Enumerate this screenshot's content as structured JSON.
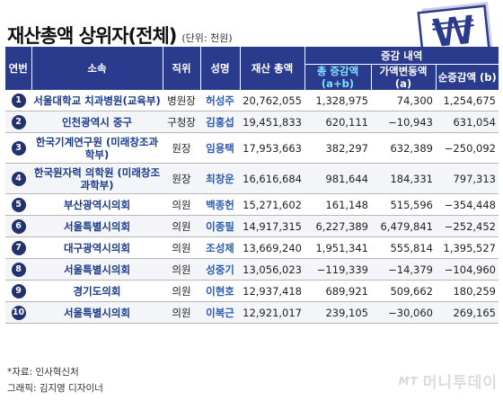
{
  "title": "재산총액 상위자(전체)",
  "unit": "(단위: 천원)",
  "logo_symbol": "₩",
  "colors": {
    "header_bg": "#2a3a8c",
    "org_text": "#1a3a8a",
    "name_text": "#2a5db0",
    "sub_header": "#7fe0ff"
  },
  "chart_data": {
    "type": "table",
    "header_group": "증감 내역",
    "columns": [
      "연번",
      "소속",
      "직위",
      "성명",
      "재산 총액",
      "총 증감액 (a+b)",
      "가액변동액 (a)",
      "순증감액 (b)"
    ],
    "rows": [
      [
        "1",
        "서울대학교 치과병원(교육부)",
        "병원장",
        "허성주",
        "20,762,055",
        "1,328,975",
        "74,300",
        "1,254,675"
      ],
      [
        "2",
        "인천광역시 중구",
        "구청장",
        "김홍섭",
        "19,451,833",
        "620,111",
        "−10,943",
        "631,054"
      ],
      [
        "3",
        "한국기계연구원 (미래창조과학부)",
        "원장",
        "임용택",
        "17,953,663",
        "382,297",
        "632,389",
        "−250,092"
      ],
      [
        "4",
        "한국원자력 의학원 (미래창조과학부)",
        "원장",
        "최창운",
        "16,616,684",
        "981,644",
        "184,331",
        "797,313"
      ],
      [
        "5",
        "부산광역시의회",
        "의원",
        "백종헌",
        "15,271,602",
        "161,148",
        "515,596",
        "−354,448"
      ],
      [
        "6",
        "서울특별시의회",
        "의원",
        "이종필",
        "14,917,315",
        "6,227,389",
        "6,479,841",
        "−252,452"
      ],
      [
        "7",
        "대구광역시의회",
        "의원",
        "조성제",
        "13,669,240",
        "1,951,341",
        "555,814",
        "1,395,527"
      ],
      [
        "8",
        "서울특별시의회",
        "의원",
        "성중기",
        "13,056,023",
        "−119,339",
        "−14,379",
        "−104,960"
      ],
      [
        "9",
        "경기도의회",
        "의원",
        "이현호",
        "12,937,418",
        "689,921",
        "509,662",
        "180,259"
      ],
      [
        "10",
        "서울특별시의회",
        "의원",
        "이복근",
        "12,921,017",
        "239,105",
        "−30,060",
        "269,165"
      ]
    ]
  },
  "footer": {
    "source": "*자료: 인사혁신처",
    "graphic": "그래픽: 김지영 디자이너"
  },
  "brand": {
    "mark": "MT",
    "name": "머니투데이"
  }
}
